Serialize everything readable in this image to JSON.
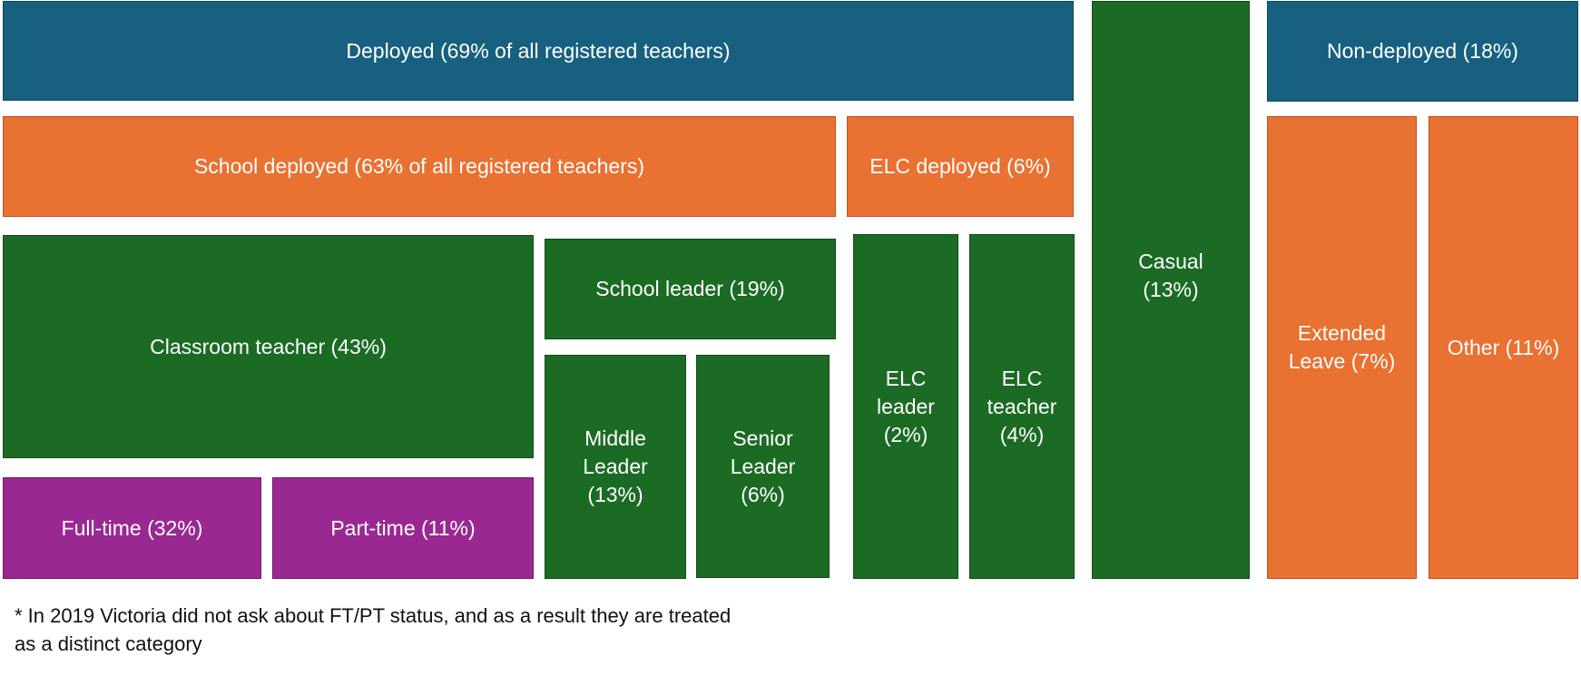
{
  "boxes": {
    "deployed": "Deployed (69% of all registered teachers)",
    "non_deployed": "Non-deployed (18%)",
    "school_deployed": "School deployed (63% of all registered teachers)",
    "elc_deployed": "ELC deployed (6%)",
    "casual": "Casual\n(13%)",
    "extended_leave": "Extended\nLeave (7%)",
    "other": "Other (11%)",
    "classroom_teacher": "Classroom teacher (43%)",
    "school_leader": "School leader (19%)",
    "middle_leader": "Middle\nLeader\n(13%)",
    "senior_leader": "Senior\nLeader\n(6%)",
    "elc_leader": "ELC\nleader\n(2%)",
    "elc_teacher": "ELC\nteacher\n(4%)",
    "full_time": "Full-time (32%)",
    "part_time": "Part-time (11%)"
  },
  "footnote": "* In 2019 Victoria did not ask about FT/PT status, and as a result they are treated\nas a distinct category",
  "colors": {
    "blue": "#17607f",
    "orange": "#e97131",
    "green": "#1c6b25",
    "purple": "#9a2892"
  }
}
